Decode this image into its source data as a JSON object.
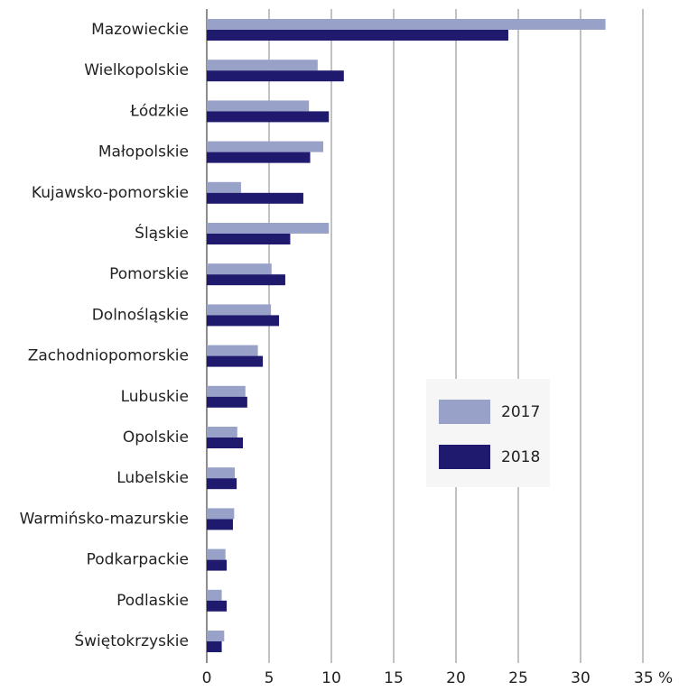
{
  "chart_data": {
    "type": "hbar",
    "categories": [
      "Mazowieckie",
      "Wielkopolskie",
      "Łódzkie",
      "Małopolskie",
      "Kujawsko-pomorskie",
      "Śląskie",
      "Pomorskie",
      "Dolnośląskie",
      "Zachodniopomorskie",
      "Lubuskie",
      "Opolskie",
      "Lubelskie",
      "Warmińsko-mazurskie",
      "Podkarpackie",
      "Podlaskie",
      "Świętokrzyskie"
    ],
    "series": [
      {
        "name": "2017",
        "color": "#98a2c8",
        "values": [
          32,
          8.9,
          8.2,
          9.35,
          2.75,
          9.8,
          5.2,
          5.15,
          4.1,
          3.1,
          2.45,
          2.25,
          2.2,
          1.5,
          1.2,
          1.4
        ]
      },
      {
        "name": "2018",
        "color": "#1f1a6e",
        "values": [
          24.2,
          11.0,
          9.8,
          8.3,
          7.75,
          6.7,
          6.3,
          5.8,
          4.5,
          3.25,
          2.9,
          2.4,
          2.1,
          1.6,
          1.6,
          1.2
        ]
      }
    ],
    "xlim": [
      0,
      35
    ],
    "xticks": [
      0,
      5,
      10,
      15,
      20,
      25,
      30,
      {
        "value": 35,
        "label": "35 %"
      }
    ],
    "grid": true
  }
}
